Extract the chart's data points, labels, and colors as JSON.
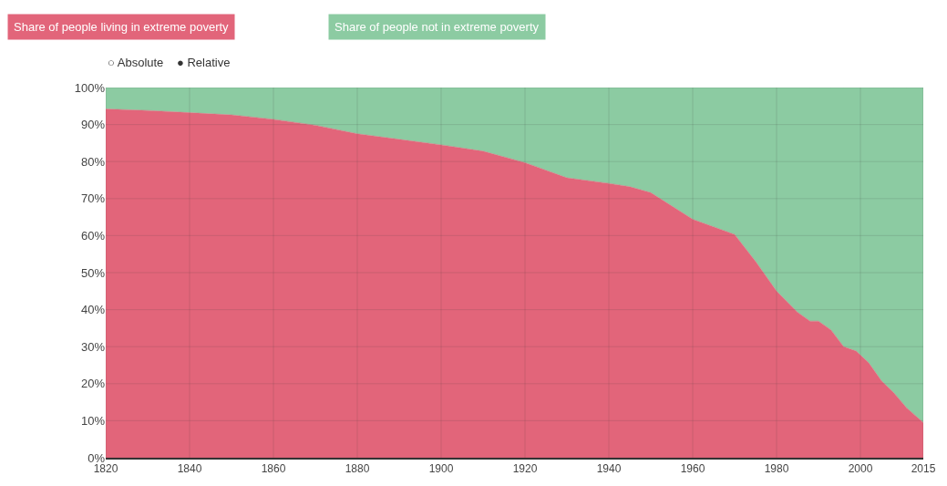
{
  "chart_data": {
    "type": "area",
    "stacked": true,
    "legend": "top left",
    "grid": true,
    "x": [
      1820,
      1830,
      1840,
      1850,
      1860,
      1870,
      1880,
      1890,
      1900,
      1910,
      1920,
      1930,
      1940,
      1945,
      1950,
      1960,
      1970,
      1975,
      1980,
      1985,
      1988,
      1990,
      1993,
      1996,
      1999,
      2002,
      2005,
      2008,
      2011,
      2015
    ],
    "series": [
      {
        "name": "Share of people living in extreme poverty",
        "color": "#e2657a",
        "values": [
          94.2,
          93.8,
          93.2,
          92.6,
          91.4,
          89.8,
          87.5,
          86,
          84.5,
          82.8,
          79.7,
          75.6,
          74.1,
          73.2,
          71.6,
          64.4,
          60.3,
          53,
          45,
          39.3,
          36.9,
          36.9,
          34.5,
          30,
          28.8,
          25.6,
          20.8,
          17.5,
          13.5,
          9.5
        ]
      },
      {
        "name": "Share of people not in extreme poverty",
        "color": "#8ccba2",
        "values": [
          5.8,
          6.2,
          6.8,
          7.4,
          8.6,
          10.2,
          12.5,
          14,
          15.5,
          17.2,
          20.3,
          24.4,
          25.9,
          26.8,
          28.4,
          35.6,
          39.7,
          47,
          55,
          60.7,
          63.1,
          63.1,
          65.5,
          70,
          71.2,
          74.4,
          79.2,
          82.5,
          86.5,
          90.5
        ]
      }
    ],
    "xlim": [
      1820,
      2015
    ],
    "xticks": [
      1820,
      1840,
      1860,
      1880,
      1900,
      1920,
      1940,
      1960,
      1980,
      2000,
      2015
    ],
    "ylim": [
      0,
      100
    ],
    "yticks": [
      {
        "value": 0,
        "label": "0%"
      },
      {
        "value": 10,
        "label": "10%"
      },
      {
        "value": 20,
        "label": "20%"
      },
      {
        "value": 30,
        "label": "30%"
      },
      {
        "value": 40,
        "label": "40%"
      },
      {
        "value": 50,
        "label": "50%"
      },
      {
        "value": 60,
        "label": "60%"
      },
      {
        "value": 70,
        "label": "70%"
      },
      {
        "value": 80,
        "label": "80%"
      },
      {
        "value": 90,
        "label": "90%"
      },
      {
        "value": 100,
        "label": "100%"
      }
    ],
    "annotations": [
      "○ Absolute",
      "● Relative"
    ]
  }
}
